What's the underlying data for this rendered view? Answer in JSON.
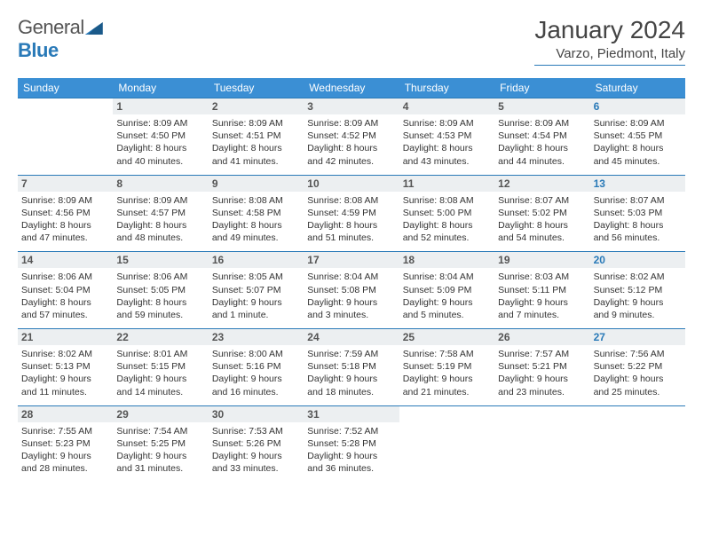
{
  "brand": {
    "word1": "General",
    "word2": "Blue"
  },
  "header": {
    "title": "January 2024",
    "location": "Varzo, Piedmont, Italy"
  },
  "colors": {
    "accent": "#3b8fd4",
    "rule": "#2a7ab8",
    "num_bg": "#eceff1",
    "text": "#333333",
    "sat": "#2a7ab8"
  },
  "layout": {
    "cols": 7,
    "rows": 6,
    "first_weekday": "Sunday"
  },
  "day_headers": [
    "Sunday",
    "Monday",
    "Tuesday",
    "Wednesday",
    "Thursday",
    "Friday",
    "Saturday"
  ],
  "days": [
    {
      "blank": true
    },
    {
      "n": "1",
      "sr": "8:09 AM",
      "ss": "4:50 PM",
      "dl": "8 hours and 40 minutes."
    },
    {
      "n": "2",
      "sr": "8:09 AM",
      "ss": "4:51 PM",
      "dl": "8 hours and 41 minutes."
    },
    {
      "n": "3",
      "sr": "8:09 AM",
      "ss": "4:52 PM",
      "dl": "8 hours and 42 minutes."
    },
    {
      "n": "4",
      "sr": "8:09 AM",
      "ss": "4:53 PM",
      "dl": "8 hours and 43 minutes."
    },
    {
      "n": "5",
      "sr": "8:09 AM",
      "ss": "4:54 PM",
      "dl": "8 hours and 44 minutes."
    },
    {
      "n": "6",
      "sr": "8:09 AM",
      "ss": "4:55 PM",
      "dl": "8 hours and 45 minutes.",
      "sat": true
    },
    {
      "n": "7",
      "sr": "8:09 AM",
      "ss": "4:56 PM",
      "dl": "8 hours and 47 minutes."
    },
    {
      "n": "8",
      "sr": "8:09 AM",
      "ss": "4:57 PM",
      "dl": "8 hours and 48 minutes."
    },
    {
      "n": "9",
      "sr": "8:08 AM",
      "ss": "4:58 PM",
      "dl": "8 hours and 49 minutes."
    },
    {
      "n": "10",
      "sr": "8:08 AM",
      "ss": "4:59 PM",
      "dl": "8 hours and 51 minutes."
    },
    {
      "n": "11",
      "sr": "8:08 AM",
      "ss": "5:00 PM",
      "dl": "8 hours and 52 minutes."
    },
    {
      "n": "12",
      "sr": "8:07 AM",
      "ss": "5:02 PM",
      "dl": "8 hours and 54 minutes."
    },
    {
      "n": "13",
      "sr": "8:07 AM",
      "ss": "5:03 PM",
      "dl": "8 hours and 56 minutes.",
      "sat": true
    },
    {
      "n": "14",
      "sr": "8:06 AM",
      "ss": "5:04 PM",
      "dl": "8 hours and 57 minutes."
    },
    {
      "n": "15",
      "sr": "8:06 AM",
      "ss": "5:05 PM",
      "dl": "8 hours and 59 minutes."
    },
    {
      "n": "16",
      "sr": "8:05 AM",
      "ss": "5:07 PM",
      "dl": "9 hours and 1 minute."
    },
    {
      "n": "17",
      "sr": "8:04 AM",
      "ss": "5:08 PM",
      "dl": "9 hours and 3 minutes."
    },
    {
      "n": "18",
      "sr": "8:04 AM",
      "ss": "5:09 PM",
      "dl": "9 hours and 5 minutes."
    },
    {
      "n": "19",
      "sr": "8:03 AM",
      "ss": "5:11 PM",
      "dl": "9 hours and 7 minutes."
    },
    {
      "n": "20",
      "sr": "8:02 AM",
      "ss": "5:12 PM",
      "dl": "9 hours and 9 minutes.",
      "sat": true
    },
    {
      "n": "21",
      "sr": "8:02 AM",
      "ss": "5:13 PM",
      "dl": "9 hours and 11 minutes."
    },
    {
      "n": "22",
      "sr": "8:01 AM",
      "ss": "5:15 PM",
      "dl": "9 hours and 14 minutes."
    },
    {
      "n": "23",
      "sr": "8:00 AM",
      "ss": "5:16 PM",
      "dl": "9 hours and 16 minutes."
    },
    {
      "n": "24",
      "sr": "7:59 AM",
      "ss": "5:18 PM",
      "dl": "9 hours and 18 minutes."
    },
    {
      "n": "25",
      "sr": "7:58 AM",
      "ss": "5:19 PM",
      "dl": "9 hours and 21 minutes."
    },
    {
      "n": "26",
      "sr": "7:57 AM",
      "ss": "5:21 PM",
      "dl": "9 hours and 23 minutes."
    },
    {
      "n": "27",
      "sr": "7:56 AM",
      "ss": "5:22 PM",
      "dl": "9 hours and 25 minutes.",
      "sat": true
    },
    {
      "n": "28",
      "sr": "7:55 AM",
      "ss": "5:23 PM",
      "dl": "9 hours and 28 minutes."
    },
    {
      "n": "29",
      "sr": "7:54 AM",
      "ss": "5:25 PM",
      "dl": "9 hours and 31 minutes."
    },
    {
      "n": "30",
      "sr": "7:53 AM",
      "ss": "5:26 PM",
      "dl": "9 hours and 33 minutes."
    },
    {
      "n": "31",
      "sr": "7:52 AM",
      "ss": "5:28 PM",
      "dl": "9 hours and 36 minutes."
    },
    {
      "blank": true
    },
    {
      "blank": true
    },
    {
      "blank": true
    }
  ],
  "labels": {
    "sunrise": "Sunrise:",
    "sunset": "Sunset:",
    "daylight": "Daylight:"
  }
}
